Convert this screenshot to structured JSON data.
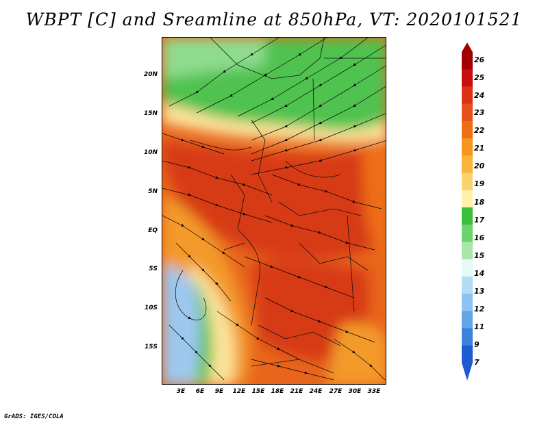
{
  "title": "WBPT [C] and Sreamline at 850hPa, VT: 2020101521",
  "credit": "GrADS: IGES/COLA",
  "map": {
    "variable": "Wet-bulb potential temperature",
    "units": "C",
    "level": "850hPa",
    "lat_range": [
      -20,
      24
    ],
    "lon_range": [
      0,
      35
    ],
    "lat_labels": [
      "20N",
      "15N",
      "10N",
      "5N",
      "EQ",
      "5S",
      "10S",
      "15S"
    ],
    "lat_values": [
      20,
      15,
      10,
      5,
      0,
      -5,
      -10,
      -15
    ],
    "lon_labels": [
      "3E",
      "6E",
      "9E",
      "12E",
      "15E",
      "18E",
      "21E",
      "24E",
      "27E",
      "30E",
      "33E"
    ],
    "lon_values": [
      3,
      6,
      9,
      12,
      15,
      18,
      21,
      24,
      27,
      30,
      33
    ]
  },
  "colorbar": {
    "levels": [
      "26",
      "25",
      "24",
      "23",
      "22",
      "21",
      "20",
      "19",
      "18",
      "17",
      "16",
      "15",
      "14",
      "13",
      "12",
      "11",
      "9",
      "7"
    ],
    "colors": [
      "#a00000",
      "#c80f0f",
      "#dc3214",
      "#e6501e",
      "#ee6e14",
      "#f5961e",
      "#fab43c",
      "#fad26e",
      "#fff0aa",
      "#3cbe3c",
      "#6ed26e",
      "#aae6aa",
      "#e6fafa",
      "#b4dcf5",
      "#8cc3f0",
      "#64a5e6",
      "#3c82dc",
      "#1e5ad2"
    ]
  },
  "colors": {
    "green": "#4fc24f",
    "light_green": "#8fdc8f",
    "yellow": "#fbe39a",
    "orange": "#f39a2a",
    "dark_orange": "#e8651c",
    "red": "#d73a16",
    "blue": "#9cc8ee"
  }
}
